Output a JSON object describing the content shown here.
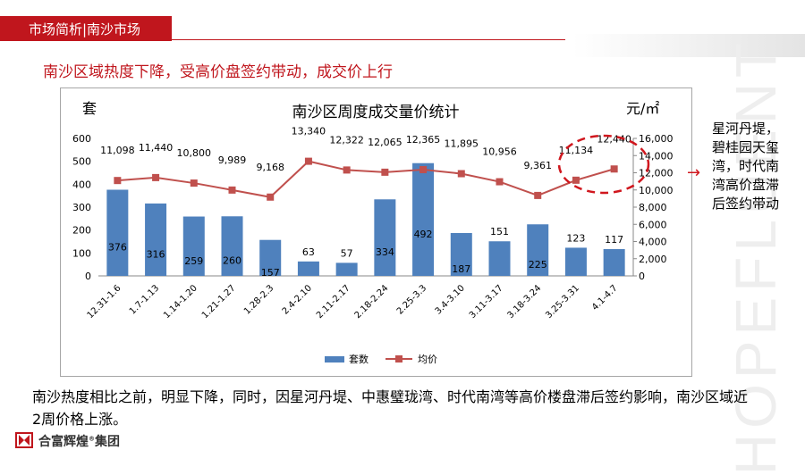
{
  "header": {
    "title": "市场简析|南沙市场"
  },
  "subtitle": "南沙区域热度下降，受高价盘签约带动，成交价上行",
  "side_note": "星河丹堤，碧桂园天玺湾，时代南湾高价盘滞后签约带动",
  "body_text": "南沙热度相比之前，明显下降，同时，因星河丹堤、中惠璧珑湾、时代南湾等高价楼盘滞后签约影响，南沙区域近2周价格上涨。",
  "logo": {
    "text": "合富辉煌",
    "text2": "集团"
  },
  "watermark": "HOPEFLUENT",
  "colors": {
    "accent": "#c0161d",
    "bar": "#4f81bd",
    "line": "#c0504d"
  },
  "chart_data": {
    "type": "bar",
    "title": "南沙区周度成交量价统计",
    "ylabel": "套",
    "y2label": "元/㎡",
    "categories": [
      "12.31-1.6",
      "1.7-1.13",
      "1.14-1.20",
      "1.21-1.27",
      "1.28-2.3",
      "2.4-2.10",
      "2.11-2.17",
      "2.18-2.24",
      "2.25-3.3",
      "3.4-3.10",
      "3.11-3.17",
      "3.18-3.24",
      "3.25-3.31",
      "4.1-4.7"
    ],
    "series": [
      {
        "name": "套数",
        "type": "bar",
        "axis": "left",
        "values": [
          376,
          316,
          259,
          260,
          157,
          63,
          57,
          334,
          492,
          187,
          151,
          225,
          123,
          117
        ]
      },
      {
        "name": "均价",
        "type": "line",
        "axis": "right",
        "values": [
          11098,
          11440,
          10800,
          9989,
          9168,
          13340,
          12322,
          12065,
          12365,
          11895,
          10956,
          9361,
          11134,
          12440
        ]
      }
    ],
    "ylim": [
      0,
      600
    ],
    "yticks": [
      "0",
      "100",
      "200",
      "300",
      "400",
      "500",
      "600"
    ],
    "y2lim": [
      0,
      16000
    ],
    "y2ticks": [
      "0",
      "2,000",
      "4,000",
      "6,000",
      "8,000",
      "10,000",
      "12,000",
      "14,000",
      "16,000"
    ],
    "bar_labels": [
      "376",
      "316",
      "259",
      "260",
      "157",
      "63",
      "57",
      "334",
      "492",
      "187",
      "151",
      "225",
      "123",
      "117"
    ],
    "line_labels": [
      "11,098",
      "11,440",
      "10,800",
      "9,989",
      "9,168",
      "13,340",
      "12,322",
      "12,065",
      "12,365",
      "11,895",
      "10,956",
      "9,361",
      "11,134",
      "12,440"
    ],
    "legend_position": "bottom",
    "grid": false
  }
}
